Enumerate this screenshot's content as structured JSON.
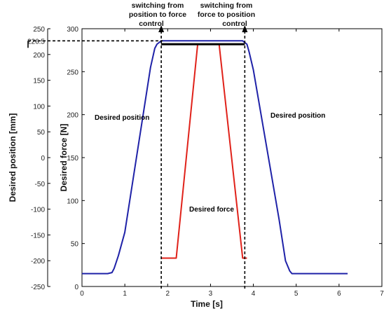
{
  "chart_data": {
    "type": "line",
    "title": "",
    "xlabel": "Time [s]",
    "ylabel_left": "Desired position [mm]",
    "ylabel_right": "Desired force [N]",
    "xlim": [
      0,
      7
    ],
    "ylim_position": [
      -250,
      250
    ],
    "ylim_force": [
      0,
      300
    ],
    "x_ticks": [
      "0",
      "1",
      "2",
      "3",
      "4",
      "5",
      "6",
      "7"
    ],
    "position_ticks": [
      "250",
      "226.5",
      "200",
      "150",
      "100",
      "50",
      "0",
      "-50",
      "-100",
      "-150",
      "-200",
      "-250"
    ],
    "position_tick_values": [
      250,
      226.5,
      200,
      150,
      100,
      50,
      0,
      -50,
      -100,
      -150,
      -200,
      -250
    ],
    "force_ticks": [
      "300",
      "250",
      "200",
      "150",
      "100",
      "50",
      "0"
    ],
    "force_tick_values": [
      300,
      250,
      200,
      150,
      100,
      50,
      0
    ],
    "grid": false,
    "colors": {
      "position": "#1f22a8",
      "force": "#e0221a",
      "axis": "#000000"
    },
    "series": [
      {
        "name": "Desired position",
        "axis": "position",
        "x": [
          0,
          0.6,
          0.7,
          0.75,
          0.85,
          1.0,
          1.6,
          1.7,
          1.75,
          1.85,
          3.75,
          3.85,
          3.9,
          4.0,
          4.6,
          4.75,
          4.85,
          4.9,
          6.2
        ],
        "y": [
          -225,
          -225,
          -223,
          -215,
          -190,
          -145,
          175,
          212,
          220,
          226.5,
          226.5,
          220,
          205,
          170,
          -120,
          -200,
          -220,
          -225,
          -225
        ]
      },
      {
        "name": "Desired force",
        "axis": "force",
        "x": [
          1.85,
          2.2,
          2.7,
          3.2,
          3.75,
          3.85
        ],
        "y": [
          33,
          33,
          282,
          282,
          33,
          33
        ]
      },
      {
        "name": "",
        "axis": "force",
        "x": [
          1.85,
          3.8
        ],
        "y": [
          282,
          282
        ]
      }
    ],
    "series_labels": [
      "Desired position",
      "Desired position",
      "Desired force"
    ],
    "reference": {
      "position_value": 226.5,
      "switch_times": [
        1.85,
        3.8
      ]
    },
    "annotations": [
      {
        "lines": [
          "switching from",
          "position to force",
          "control"
        ]
      },
      {
        "lines": [
          "switching from",
          "force to position",
          "control"
        ]
      }
    ]
  }
}
